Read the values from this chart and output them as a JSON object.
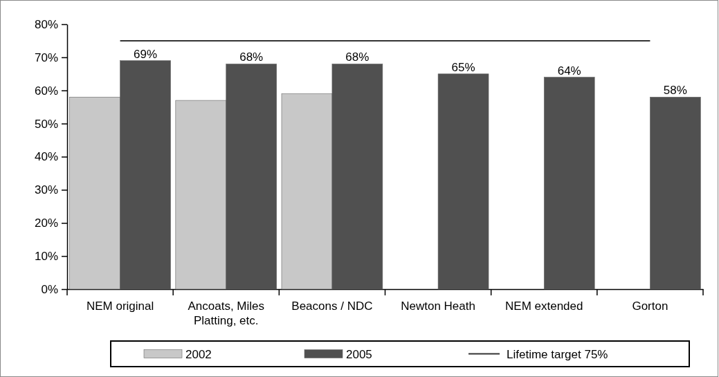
{
  "chart_data": {
    "type": "bar",
    "categories": [
      "NEM original",
      "Ancoats, Miles Platting, etc.",
      "Beacons / NDC",
      "Newton Heath",
      "NEM extended",
      "Gorton"
    ],
    "series": [
      {
        "name": "2002",
        "color": "#c8c8c8",
        "values": [
          58,
          57,
          59,
          null,
          null,
          null
        ]
      },
      {
        "name": "2005",
        "color": "#505050",
        "values": [
          69,
          68,
          68,
          65,
          64,
          58
        ],
        "value_labels": [
          "69%",
          "68%",
          "68%",
          "65%",
          "64%",
          "58%"
        ]
      },
      {
        "name": "Lifetime target 75%",
        "type": "line",
        "color": "#333333",
        "values": [
          75,
          75,
          75,
          75,
          75,
          75
        ],
        "marker": "none"
      }
    ],
    "ylim": [
      0,
      80
    ],
    "yticks": [
      {
        "value": 0,
        "label": "0%"
      },
      {
        "value": 10,
        "label": "10%"
      },
      {
        "value": 20,
        "label": "20%"
      },
      {
        "value": 30,
        "label": "30%"
      },
      {
        "value": 40,
        "label": "40%"
      },
      {
        "value": 50,
        "label": "50%"
      },
      {
        "value": 60,
        "label": "60%"
      },
      {
        "value": 70,
        "label": "70%"
      },
      {
        "value": 80,
        "label": "80%"
      }
    ],
    "grid": false,
    "legend": "bottom"
  }
}
